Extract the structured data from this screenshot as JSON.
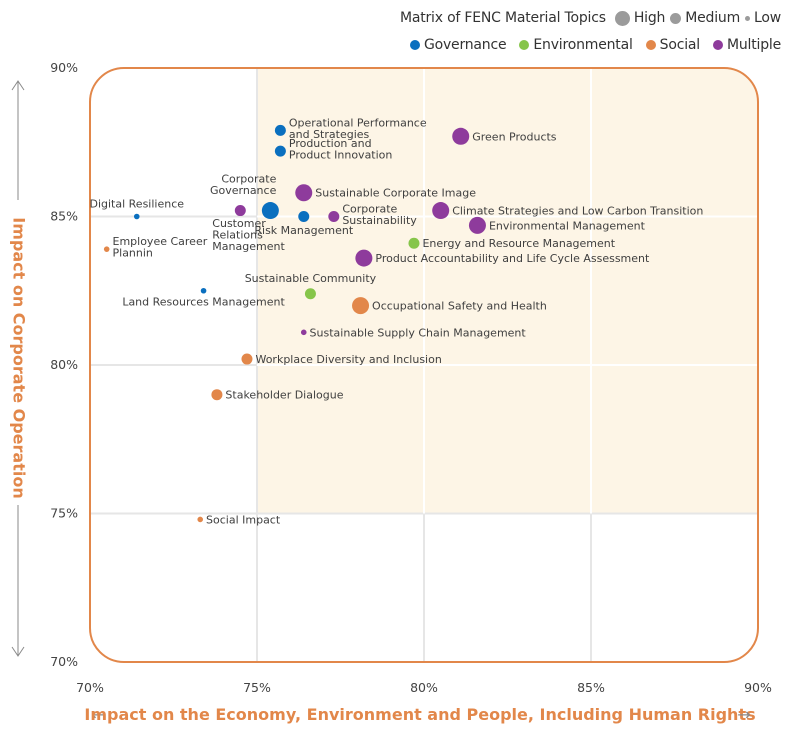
{
  "chart_data": {
    "type": "scatter",
    "title": "Matrix of FENC Material Topics",
    "xlabel": "Impact on the Economy, Environment and People, Including Human Rights",
    "ylabel": "Impact on Corporate Operation",
    "xlim": [
      70,
      90
    ],
    "ylim": [
      70,
      90
    ],
    "x_ticks": [
      "70%",
      "75%",
      "80%",
      "85%",
      "90%"
    ],
    "y_ticks": [
      "70%",
      "75%",
      "80%",
      "85%",
      "90%"
    ],
    "x_tick_values": [
      70,
      75,
      80,
      85,
      90
    ],
    "y_tick_values": [
      70,
      75,
      80,
      85,
      90
    ],
    "grid": true,
    "highlight_region": {
      "x": [
        75,
        90
      ],
      "y": [
        75,
        90
      ],
      "color": "#fdf5e6"
    },
    "frame_color": "#e2874a",
    "legend": {
      "placement": "top-right",
      "size_label": "Matrix of FENC Material Topics",
      "sizes": [
        {
          "name": "High",
          "level": "high"
        },
        {
          "name": "Medium",
          "level": "medium"
        },
        {
          "name": "Low",
          "level": "low"
        }
      ],
      "categories": [
        {
          "name": "Governance",
          "color": "#0a6fbf"
        },
        {
          "name": "Environmental",
          "color": "#86c54a"
        },
        {
          "name": "Social",
          "color": "#e2874a"
        },
        {
          "name": "Multiple",
          "color": "#8e3b9c"
        }
      ]
    },
    "points": [
      {
        "label": "Operational Performance\nand Strategies",
        "x": 75.7,
        "y": 87.9,
        "category": "Governance",
        "size": "medium",
        "label_pos": "right"
      },
      {
        "label": "Production and\nProduct Innovation",
        "x": 75.7,
        "y": 87.2,
        "category": "Governance",
        "size": "medium",
        "label_pos": "right"
      },
      {
        "label": "Green Products",
        "x": 81.1,
        "y": 87.7,
        "category": "Multiple",
        "size": "high",
        "label_pos": "right"
      },
      {
        "label": "Sustainable Corporate Image",
        "x": 76.4,
        "y": 85.8,
        "category": "Multiple",
        "size": "high",
        "label_pos": "right"
      },
      {
        "label": "Corporate\nGovernance",
        "x": 75.4,
        "y": 85.2,
        "category": "Governance",
        "size": "high",
        "label_pos": "top-left"
      },
      {
        "label": "Risk Management",
        "x": 76.4,
        "y": 85.0,
        "category": "Governance",
        "size": "medium",
        "label_pos": "below"
      },
      {
        "label": "Corporate\nSustainability",
        "x": 77.3,
        "y": 85.0,
        "category": "Multiple",
        "size": "medium",
        "label_pos": "right"
      },
      {
        "label": "Customer\nRelations\nManagement",
        "x": 74.5,
        "y": 85.2,
        "category": "Multiple",
        "size": "medium",
        "label_pos": "below-left"
      },
      {
        "label": "Digital Resilience",
        "x": 71.4,
        "y": 85.0,
        "category": "Governance",
        "size": "low",
        "label_pos": "above"
      },
      {
        "label": "Employee Career\nPlannin",
        "x": 70.5,
        "y": 83.9,
        "category": "Social",
        "size": "low",
        "label_pos": "right"
      },
      {
        "label": "Climate Strategies and Low Carbon Transition",
        "x": 80.5,
        "y": 85.2,
        "category": "Multiple",
        "size": "high",
        "label_pos": "right"
      },
      {
        "label": "Environmental Management",
        "x": 81.6,
        "y": 84.7,
        "category": "Multiple",
        "size": "high",
        "label_pos": "right"
      },
      {
        "label": "Energy and Resource Management",
        "x": 79.7,
        "y": 84.1,
        "category": "Environmental",
        "size": "medium",
        "label_pos": "right"
      },
      {
        "label": "Product Accountability and Life Cycle Assessment",
        "x": 78.2,
        "y": 83.6,
        "category": "Multiple",
        "size": "high",
        "label_pos": "right"
      },
      {
        "label": "Sustainable Community",
        "x": 76.6,
        "y": 82.4,
        "category": "Environmental",
        "size": "medium",
        "label_pos": "above"
      },
      {
        "label": "Land Resources Management",
        "x": 73.4,
        "y": 82.5,
        "category": "Governance",
        "size": "low",
        "label_pos": "below"
      },
      {
        "label": "Occupational Safety and Health",
        "x": 78.1,
        "y": 82.0,
        "category": "Social",
        "size": "high",
        "label_pos": "right"
      },
      {
        "label": "Sustainable Supply Chain Management",
        "x": 76.4,
        "y": 81.1,
        "category": "Multiple",
        "size": "low",
        "label_pos": "right"
      },
      {
        "label": "Workplace Diversity and Inclusion",
        "x": 74.7,
        "y": 80.2,
        "category": "Social",
        "size": "medium",
        "label_pos": "right"
      },
      {
        "label": "Stakeholder Dialogue",
        "x": 73.8,
        "y": 79.0,
        "category": "Social",
        "size": "medium",
        "label_pos": "right"
      },
      {
        "label": "Social Impact",
        "x": 73.3,
        "y": 74.8,
        "category": "Social",
        "size": "low",
        "label_pos": "right"
      }
    ]
  }
}
